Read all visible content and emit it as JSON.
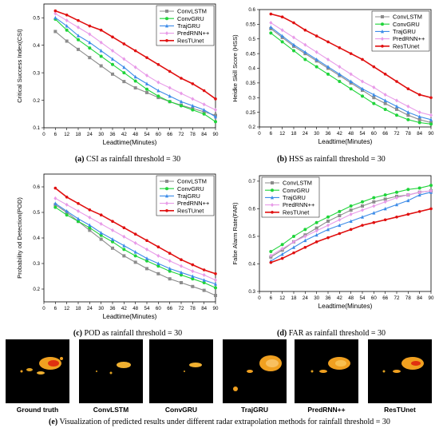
{
  "colors": {
    "ConvLSTM": "#8c8c8c",
    "ConvGRU": "#1fd43a",
    "TrajGRU": "#3b8be8",
    "PredRNN++": "#e89be8",
    "ResTUnet": "#e01010"
  },
  "legend_order": [
    "ConvLSTM",
    "ConvGRU",
    "TrajGRU",
    "PredRNN++",
    "ResTUnet"
  ],
  "chart_data": [
    {
      "type": "line",
      "caption_label": "(a)",
      "caption_text": "CSI as rainfall threshold = 30",
      "xlabel": "Leadtime(Minutes)",
      "ylabel": "Critical Success Index(CSI)",
      "x": [
        6,
        12,
        18,
        24,
        30,
        36,
        42,
        48,
        54,
        60,
        66,
        72,
        78,
        84,
        90
      ],
      "xticks": [
        0,
        6,
        12,
        18,
        24,
        30,
        36,
        42,
        48,
        54,
        60,
        66,
        72,
        78,
        84,
        90
      ],
      "xlim": [
        0,
        90
      ],
      "ylim": [
        0.1,
        0.55
      ],
      "yticks": [
        0.1,
        0.2,
        0.3,
        0.4,
        0.5
      ],
      "legend_position": "top-right",
      "series": [
        {
          "name": "ConvLSTM",
          "values": [
            0.45,
            0.415,
            0.385,
            0.355,
            0.325,
            0.295,
            0.268,
            0.245,
            0.228,
            0.21,
            0.195,
            0.182,
            0.17,
            0.158,
            0.145
          ]
        },
        {
          "name": "ConvGRU",
          "values": [
            0.495,
            0.455,
            0.42,
            0.39,
            0.36,
            0.33,
            0.3,
            0.27,
            0.24,
            0.215,
            0.195,
            0.18,
            0.165,
            0.15,
            0.122
          ]
        },
        {
          "name": "TrajGRU",
          "values": [
            0.5,
            0.47,
            0.435,
            0.41,
            0.38,
            0.35,
            0.32,
            0.285,
            0.26,
            0.235,
            0.215,
            0.195,
            0.18,
            0.165,
            0.14
          ]
        },
        {
          "name": "PredRNN++",
          "values": [
            0.515,
            0.49,
            0.465,
            0.44,
            0.41,
            0.38,
            0.35,
            0.32,
            0.29,
            0.265,
            0.245,
            0.225,
            0.205,
            0.185,
            0.165
          ]
        },
        {
          "name": "ResTUnet",
          "values": [
            0.525,
            0.51,
            0.49,
            0.47,
            0.455,
            0.43,
            0.405,
            0.38,
            0.355,
            0.33,
            0.305,
            0.28,
            0.26,
            0.235,
            0.205
          ]
        }
      ]
    },
    {
      "type": "line",
      "caption_label": "(b)",
      "caption_text": "HSS as rainfall threshold = 30",
      "xlabel": "Leadtime(Minutes)",
      "ylabel": "Heidke Skill Score (HSS)",
      "x": [
        6,
        12,
        18,
        24,
        30,
        36,
        42,
        48,
        54,
        60,
        66,
        72,
        78,
        84,
        90
      ],
      "xticks": [
        0,
        6,
        12,
        18,
        24,
        30,
        36,
        42,
        48,
        54,
        60,
        66,
        72,
        78,
        84,
        90
      ],
      "xlim": [
        0,
        90
      ],
      "ylim": [
        0.2,
        0.6
      ],
      "yticks": [
        0.2,
        0.25,
        0.3,
        0.35,
        0.4,
        0.45,
        0.5,
        0.55,
        0.6
      ],
      "legend_position": "top-right",
      "series": [
        {
          "name": "ConvLSTM",
          "values": [
            0.535,
            0.505,
            0.475,
            0.45,
            0.425,
            0.4,
            0.375,
            0.35,
            0.325,
            0.3,
            0.28,
            0.26,
            0.24,
            0.225,
            0.215
          ]
        },
        {
          "name": "ConvGRU",
          "values": [
            0.52,
            0.49,
            0.46,
            0.43,
            0.405,
            0.38,
            0.355,
            0.33,
            0.305,
            0.28,
            0.26,
            0.24,
            0.225,
            0.215,
            0.21
          ]
        },
        {
          "name": "TrajGRU",
          "values": [
            0.54,
            0.51,
            0.48,
            0.455,
            0.43,
            0.405,
            0.38,
            0.355,
            0.33,
            0.31,
            0.29,
            0.27,
            0.25,
            0.235,
            0.225
          ]
        },
        {
          "name": "PredRNN++",
          "values": [
            0.555,
            0.53,
            0.505,
            0.48,
            0.455,
            0.43,
            0.405,
            0.38,
            0.355,
            0.335,
            0.31,
            0.29,
            0.27,
            0.25,
            0.24
          ]
        },
        {
          "name": "ResTUnet",
          "values": [
            0.585,
            0.575,
            0.555,
            0.53,
            0.51,
            0.49,
            0.47,
            0.45,
            0.43,
            0.405,
            0.38,
            0.355,
            0.33,
            0.31,
            0.3
          ]
        }
      ]
    },
    {
      "type": "line",
      "caption_label": "(c)",
      "caption_text": "POD as rainfall threshold = 30",
      "xlabel": "Leadtime(Minutes)",
      "ylabel": "Probability od Detection(POD)",
      "x": [
        6,
        12,
        18,
        24,
        30,
        36,
        42,
        48,
        54,
        60,
        66,
        72,
        78,
        84,
        90
      ],
      "xticks": [
        0,
        6,
        12,
        18,
        24,
        30,
        36,
        42,
        48,
        54,
        60,
        66,
        72,
        78,
        84,
        90
      ],
      "xlim": [
        0,
        90
      ],
      "ylim": [
        0.15,
        0.65
      ],
      "yticks": [
        0.2,
        0.3,
        0.4,
        0.5,
        0.6
      ],
      "legend_position": "top-right",
      "series": [
        {
          "name": "ConvLSTM",
          "values": [
            0.53,
            0.5,
            0.465,
            0.43,
            0.395,
            0.36,
            0.33,
            0.305,
            0.28,
            0.26,
            0.24,
            0.225,
            0.21,
            0.195,
            0.175
          ]
        },
        {
          "name": "ConvGRU",
          "values": [
            0.52,
            0.49,
            0.465,
            0.44,
            0.41,
            0.385,
            0.355,
            0.33,
            0.31,
            0.29,
            0.27,
            0.255,
            0.24,
            0.225,
            0.205
          ]
        },
        {
          "name": "TrajGRU",
          "values": [
            0.535,
            0.505,
            0.475,
            0.45,
            0.42,
            0.395,
            0.37,
            0.345,
            0.32,
            0.3,
            0.28,
            0.265,
            0.25,
            0.235,
            0.22
          ]
        },
        {
          "name": "PredRNN++",
          "values": [
            0.555,
            0.53,
            0.505,
            0.48,
            0.455,
            0.43,
            0.405,
            0.38,
            0.355,
            0.33,
            0.31,
            0.29,
            0.27,
            0.255,
            0.235
          ]
        },
        {
          "name": "ResTUnet",
          "values": [
            0.595,
            0.56,
            0.535,
            0.51,
            0.49,
            0.465,
            0.44,
            0.415,
            0.39,
            0.365,
            0.34,
            0.315,
            0.295,
            0.275,
            0.26
          ]
        }
      ]
    },
    {
      "type": "line",
      "caption_label": "(d)",
      "caption_text": "FAR as rainfall threshold = 30",
      "xlabel": "Leadtime(Minutes)",
      "ylabel": "False Alarm Rate(FAR)",
      "x": [
        6,
        12,
        18,
        24,
        30,
        36,
        42,
        48,
        54,
        60,
        66,
        72,
        78,
        84,
        90
      ],
      "xticks": [
        0,
        6,
        12,
        18,
        24,
        30,
        36,
        42,
        48,
        54,
        60,
        66,
        72,
        78,
        84,
        90
      ],
      "xlim": [
        0,
        90
      ],
      "ylim": [
        0.3,
        0.72
      ],
      "yticks": [
        0.3,
        0.4,
        0.5,
        0.6,
        0.7
      ],
      "legend_position": "top-left",
      "series": [
        {
          "name": "ConvLSTM",
          "values": [
            0.425,
            0.45,
            0.48,
            0.505,
            0.53,
            0.555,
            0.575,
            0.595,
            0.61,
            0.625,
            0.635,
            0.645,
            0.65,
            0.66,
            0.665
          ]
        },
        {
          "name": "ConvGRU",
          "values": [
            0.445,
            0.47,
            0.5,
            0.525,
            0.55,
            0.57,
            0.59,
            0.61,
            0.625,
            0.64,
            0.65,
            0.66,
            0.67,
            0.675,
            0.685
          ]
        },
        {
          "name": "TrajGRU",
          "values": [
            0.41,
            0.435,
            0.46,
            0.485,
            0.505,
            0.525,
            0.54,
            0.555,
            0.57,
            0.585,
            0.6,
            0.615,
            0.63,
            0.65,
            0.66
          ]
        },
        {
          "name": "PredRNN++",
          "values": [
            0.43,
            0.455,
            0.48,
            0.5,
            0.52,
            0.54,
            0.56,
            0.58,
            0.595,
            0.61,
            0.625,
            0.64,
            0.65,
            0.66,
            0.665
          ]
        },
        {
          "name": "ResTUnet",
          "values": [
            0.405,
            0.42,
            0.44,
            0.46,
            0.48,
            0.495,
            0.51,
            0.525,
            0.54,
            0.55,
            0.56,
            0.57,
            0.58,
            0.59,
            0.6
          ]
        }
      ]
    }
  ],
  "panel_e": {
    "caption_label": "(e)",
    "caption_text": "Visualization of predicted results under different radar extrapolation methods for rainfall threshold = 30",
    "labels": [
      "Ground truth",
      "ConvLSTM",
      "ConvGRU",
      "TrajGRU",
      "PredRNN++",
      "ResTUnet"
    ]
  }
}
